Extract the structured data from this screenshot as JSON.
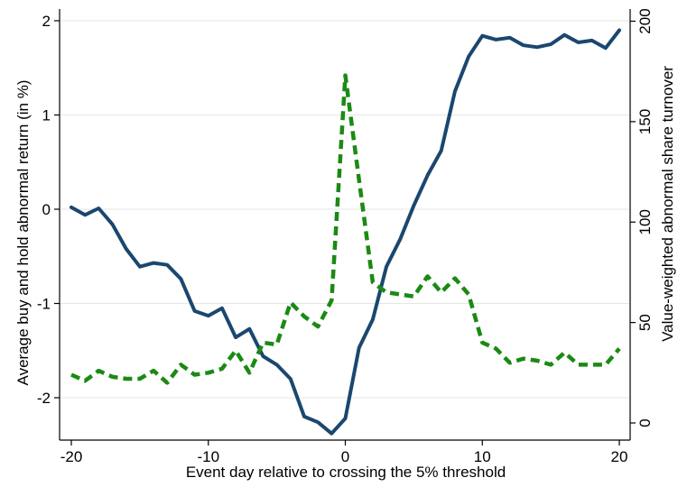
{
  "chart_data": {
    "type": "line",
    "xlabel": "Event day relative to crossing the 5% threshold",
    "ylabel": "Average buy and hold abnormal return (in %)",
    "y2label": "Value-weighted abnormal share turnover",
    "xlim": [
      -20,
      20
    ],
    "ylim": [
      -2.5,
      2.1
    ],
    "y2lim": [
      -7,
      202
    ],
    "x_ticks": [
      -20,
      -10,
      0,
      10,
      20
    ],
    "y_ticks": [
      -2,
      -1,
      0,
      1,
      2
    ],
    "y2_ticks": [
      0,
      50,
      100,
      150,
      200
    ],
    "grid": "horizontal",
    "legend": "none",
    "x": [
      -20,
      -19,
      -18,
      -17,
      -16,
      -15,
      -14,
      -13,
      -12,
      -11,
      -10,
      -9,
      -8,
      -7,
      -6,
      -5,
      -4,
      -3,
      -2,
      -1,
      0,
      1,
      2,
      3,
      4,
      5,
      6,
      7,
      8,
      9,
      10,
      11,
      12,
      13,
      14,
      15,
      16,
      17,
      18,
      19,
      20
    ],
    "series": [
      {
        "axis": "left",
        "style": "solid",
        "color": "#1a476f",
        "values": [
          0.02,
          -0.06,
          0.01,
          -0.16,
          -0.42,
          -0.61,
          -0.57,
          -0.59,
          -0.74,
          -1.08,
          -1.13,
          -1.05,
          -1.36,
          -1.27,
          -1.56,
          -1.65,
          -1.8,
          -2.2,
          -2.26,
          -2.38,
          -2.22,
          -1.47,
          -1.17,
          -0.61,
          -0.32,
          0.04,
          0.36,
          0.62,
          1.25,
          1.62,
          1.84,
          1.8,
          1.82,
          1.74,
          1.72,
          1.75,
          1.85,
          1.77,
          1.79,
          1.71,
          1.9
        ]
      },
      {
        "axis": "right",
        "style": "dashed",
        "color": "#1b8a14",
        "values": [
          24,
          21,
          26,
          23,
          22,
          22,
          26,
          20,
          29,
          24,
          25,
          27,
          36,
          25,
          40,
          39,
          60,
          53,
          48,
          61,
          173,
          121,
          70,
          65,
          64,
          63,
          73,
          65,
          72,
          64,
          40,
          37,
          30,
          32,
          31,
          29,
          35,
          29,
          29,
          29,
          37
        ]
      }
    ]
  }
}
